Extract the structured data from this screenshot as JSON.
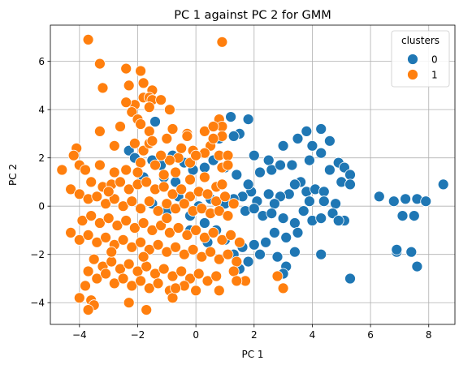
{
  "chart_data": {
    "type": "scatter",
    "title": "PC 1 against PC 2 for GMM",
    "xlabel": "PC 1",
    "ylabel": "PC 2",
    "xlim": [
      -5.0,
      8.9
    ],
    "ylim": [
      -4.9,
      7.5
    ],
    "xticks": [
      -4,
      -2,
      0,
      2,
      4,
      6,
      8
    ],
    "yticks": [
      -4,
      -2,
      0,
      2,
      4,
      6
    ],
    "grid": true,
    "legend": {
      "title": "clusters",
      "placement": "top-right"
    },
    "series": [
      {
        "name": "0",
        "color": "#1f77b4",
        "points": [
          [
            -1.4,
            3.5
          ],
          [
            0.8,
            3.5
          ],
          [
            1.2,
            3.7
          ],
          [
            1.8,
            3.6
          ],
          [
            1.5,
            3.0
          ],
          [
            1.3,
            2.9
          ],
          [
            0.8,
            2.8
          ],
          [
            3.0,
            2.5
          ],
          [
            3.5,
            2.8
          ],
          [
            3.8,
            3.1
          ],
          [
            4.3,
            3.2
          ],
          [
            4.0,
            2.5
          ],
          [
            4.6,
            2.7
          ],
          [
            2.0,
            2.1
          ],
          [
            2.5,
            1.9
          ],
          [
            2.2,
            1.4
          ],
          [
            2.6,
            1.5
          ],
          [
            2.9,
            1.7
          ],
          [
            3.3,
            1.7
          ],
          [
            3.9,
            1.9
          ],
          [
            4.3,
            2.2
          ],
          [
            4.6,
            1.5
          ],
          [
            4.9,
            1.8
          ],
          [
            5.1,
            1.6
          ],
          [
            5.3,
            1.3
          ],
          [
            5.0,
            1.0
          ],
          [
            5.3,
            0.9
          ],
          [
            3.6,
            1.0
          ],
          [
            3.8,
            0.6
          ],
          [
            4.1,
            0.7
          ],
          [
            4.4,
            0.6
          ],
          [
            3.9,
            0.2
          ],
          [
            4.4,
            0.2
          ],
          [
            4.8,
            0.1
          ],
          [
            3.2,
            0.5
          ],
          [
            3.4,
            0.9
          ],
          [
            2.9,
            0.4
          ],
          [
            2.7,
            0.1
          ],
          [
            2.5,
            0.5
          ],
          [
            2.1,
            0.2
          ],
          [
            1.9,
            0.6
          ],
          [
            1.6,
            0.4
          ],
          [
            1.3,
            0.3
          ],
          [
            1.0,
            0.1
          ],
          [
            1.7,
            -0.2
          ],
          [
            2.0,
            -0.1
          ],
          [
            2.3,
            -0.4
          ],
          [
            2.6,
            -0.3
          ],
          [
            3.0,
            -0.5
          ],
          [
            3.4,
            -0.7
          ],
          [
            3.7,
            -0.2
          ],
          [
            4.0,
            -0.6
          ],
          [
            4.3,
            -0.5
          ],
          [
            4.7,
            -0.3
          ],
          [
            5.1,
            -0.6
          ],
          [
            3.5,
            -1.1
          ],
          [
            3.1,
            -1.3
          ],
          [
            2.7,
            -1.1
          ],
          [
            2.4,
            -1.5
          ],
          [
            2.0,
            -1.6
          ],
          [
            1.6,
            -1.7
          ],
          [
            1.3,
            -2.0
          ],
          [
            1.8,
            -2.3
          ],
          [
            2.2,
            -2.0
          ],
          [
            2.8,
            -2.1
          ],
          [
            3.1,
            -2.5
          ],
          [
            3.4,
            -1.9
          ],
          [
            4.3,
            -2.0
          ],
          [
            3.0,
            -2.8
          ],
          [
            1.0,
            -1.4
          ],
          [
            0.7,
            -1.0
          ],
          [
            0.3,
            -0.7
          ],
          [
            -0.2,
            -0.4
          ],
          [
            0.1,
            0.0
          ],
          [
            0.5,
            0.3
          ],
          [
            -0.6,
            0.4
          ],
          [
            -1.0,
            -0.2
          ],
          [
            -1.5,
            0.1
          ],
          [
            -1.8,
            1.2
          ],
          [
            -2.3,
            2.3
          ],
          [
            -2.1,
            2.0
          ],
          [
            -1.5,
            1.9
          ],
          [
            -1.2,
            1.7
          ],
          [
            -0.8,
            2.1
          ],
          [
            -0.4,
            1.8
          ],
          [
            -0.1,
            1.5
          ],
          [
            0.3,
            1.6
          ],
          [
            0.6,
            1.9
          ],
          [
            1.0,
            1.6
          ],
          [
            1.4,
            1.3
          ],
          [
            1.8,
            0.9
          ],
          [
            -1.1,
            1.2
          ],
          [
            -0.7,
            1.0
          ],
          [
            1.5,
            -2.6
          ],
          [
            5.3,
            -3.0
          ],
          [
            6.3,
            0.4
          ],
          [
            6.8,
            0.2
          ],
          [
            7.2,
            0.3
          ],
          [
            7.6,
            0.3
          ],
          [
            7.9,
            0.2
          ],
          [
            8.5,
            0.9
          ],
          [
            7.1,
            -0.4
          ],
          [
            7.5,
            -0.4
          ],
          [
            6.9,
            -1.9
          ],
          [
            6.9,
            -1.8
          ],
          [
            7.4,
            -1.9
          ],
          [
            7.6,
            -2.5
          ],
          [
            4.9,
            -0.6
          ],
          [
            -0.2,
            -1.0
          ],
          [
            0.4,
            -1.5
          ]
        ]
      },
      {
        "name": "1",
        "color": "#ff7f0e",
        "points": [
          [
            -3.7,
            6.9
          ],
          [
            0.9,
            6.8
          ],
          [
            -3.3,
            5.9
          ],
          [
            -2.4,
            5.7
          ],
          [
            -1.9,
            5.6
          ],
          [
            -1.8,
            5.1
          ],
          [
            -2.3,
            5.0
          ],
          [
            -1.5,
            4.8
          ],
          [
            -3.2,
            4.9
          ],
          [
            -1.8,
            4.5
          ],
          [
            -1.6,
            4.5
          ],
          [
            -1.5,
            4.4
          ],
          [
            -1.2,
            4.4
          ],
          [
            -2.1,
            4.2
          ],
          [
            -2.4,
            4.3
          ],
          [
            -1.6,
            4.1
          ],
          [
            -0.9,
            4.0
          ],
          [
            -2.2,
            3.9
          ],
          [
            -2.0,
            3.6
          ],
          [
            -1.9,
            3.4
          ],
          [
            -2.6,
            3.3
          ],
          [
            -3.3,
            3.1
          ],
          [
            -1.6,
            3.1
          ],
          [
            -0.8,
            3.2
          ],
          [
            -0.3,
            3.0
          ],
          [
            0.3,
            3.1
          ],
          [
            0.8,
            3.6
          ],
          [
            0.9,
            3.3
          ],
          [
            0.6,
            3.3
          ],
          [
            0.9,
            2.9
          ],
          [
            0.5,
            2.5
          ],
          [
            0.3,
            2.2
          ],
          [
            0.8,
            2.1
          ],
          [
            1.1,
            2.1
          ],
          [
            0.9,
            1.6
          ],
          [
            1.1,
            1.7
          ],
          [
            -2.8,
            2.5
          ],
          [
            -2.1,
            2.6
          ],
          [
            -1.8,
            2.3
          ],
          [
            -1.6,
            2.6
          ],
          [
            -1.5,
            2.7
          ],
          [
            -1.0,
            2.8
          ],
          [
            -0.6,
            2.0
          ],
          [
            -0.1,
            2.3
          ],
          [
            -0.2,
            1.8
          ],
          [
            -4.1,
            2.4
          ],
          [
            -4.2,
            2.1
          ],
          [
            -4.0,
            1.7
          ],
          [
            -4.6,
            1.5
          ],
          [
            -3.8,
            1.5
          ],
          [
            -3.3,
            1.7
          ],
          [
            -2.8,
            1.4
          ],
          [
            -2.4,
            1.5
          ],
          [
            -1.9,
            1.8
          ],
          [
            -1.4,
            1.7
          ],
          [
            -1.1,
            1.3
          ],
          [
            -0.7,
            1.4
          ],
          [
            -0.2,
            1.1
          ],
          [
            0.3,
            1.2
          ],
          [
            0.7,
            0.8
          ],
          [
            -3.6,
            1.0
          ],
          [
            -3.2,
            0.8
          ],
          [
            -2.9,
            0.9
          ],
          [
            -2.6,
            1.0
          ],
          [
            -2.3,
            0.7
          ],
          [
            -2.0,
            0.9
          ],
          [
            -1.7,
            1.0
          ],
          [
            -1.4,
            0.7
          ],
          [
            -1.1,
            0.8
          ],
          [
            -0.8,
            0.5
          ],
          [
            -0.5,
            0.7
          ],
          [
            -0.2,
            0.4
          ],
          [
            0.1,
            0.6
          ],
          [
            0.4,
            0.5
          ],
          [
            0.7,
            0.2
          ],
          [
            1.0,
            0.4
          ],
          [
            1.3,
            0.1
          ],
          [
            -4.3,
            0.7
          ],
          [
            -4.0,
            0.5
          ],
          [
            -3.7,
            0.3
          ],
          [
            -3.4,
            0.4
          ],
          [
            -3.1,
            0.1
          ],
          [
            -2.8,
            0.3
          ],
          [
            -2.5,
            0.0
          ],
          [
            -2.2,
            0.2
          ],
          [
            -1.9,
            -0.1
          ],
          [
            -1.6,
            0.2
          ],
          [
            -1.3,
            -0.2
          ],
          [
            -1.0,
            0.1
          ],
          [
            -0.7,
            -0.1
          ],
          [
            -0.4,
            0.1
          ],
          [
            -0.1,
            -0.2
          ],
          [
            0.2,
            -0.1
          ],
          [
            0.5,
            -0.3
          ],
          [
            0.8,
            -0.2
          ],
          [
            1.1,
            -0.4
          ],
          [
            -3.9,
            -0.6
          ],
          [
            -3.6,
            -0.4
          ],
          [
            -3.3,
            -0.7
          ],
          [
            -3.0,
            -0.5
          ],
          [
            -2.7,
            -0.8
          ],
          [
            -2.4,
            -0.6
          ],
          [
            -2.1,
            -0.9
          ],
          [
            -1.8,
            -0.7
          ],
          [
            -1.5,
            -1.0
          ],
          [
            -1.2,
            -0.8
          ],
          [
            -0.9,
            -1.1
          ],
          [
            -0.6,
            -0.9
          ],
          [
            -0.3,
            -1.2
          ],
          [
            0.0,
            -1.0
          ],
          [
            0.3,
            -1.3
          ],
          [
            0.6,
            -1.1
          ],
          [
            0.9,
            -1.4
          ],
          [
            1.2,
            -1.2
          ],
          [
            1.5,
            -1.5
          ],
          [
            -4.3,
            -1.1
          ],
          [
            -4.0,
            -1.4
          ],
          [
            -3.7,
            -1.2
          ],
          [
            -3.4,
            -1.5
          ],
          [
            -3.1,
            -1.3
          ],
          [
            -2.8,
            -1.6
          ],
          [
            -2.5,
            -1.4
          ],
          [
            -2.2,
            -1.7
          ],
          [
            -1.9,
            -1.5
          ],
          [
            -1.6,
            -1.8
          ],
          [
            -1.3,
            -1.6
          ],
          [
            -1.0,
            -1.9
          ],
          [
            -0.7,
            -1.7
          ],
          [
            -0.4,
            -2.0
          ],
          [
            -0.1,
            -1.8
          ],
          [
            0.2,
            -2.1
          ],
          [
            0.5,
            -1.9
          ],
          [
            0.8,
            -2.2
          ],
          [
            1.1,
            -2.0
          ],
          [
            1.4,
            -2.3
          ],
          [
            -3.5,
            -2.2
          ],
          [
            -3.2,
            -2.5
          ],
          [
            -2.9,
            -2.3
          ],
          [
            -2.6,
            -2.6
          ],
          [
            -2.3,
            -2.4
          ],
          [
            -2.0,
            -2.7
          ],
          [
            -1.7,
            -2.5
          ],
          [
            -1.4,
            -2.8
          ],
          [
            -1.1,
            -2.6
          ],
          [
            -0.8,
            -2.9
          ],
          [
            -0.5,
            -2.7
          ],
          [
            -0.2,
            -3.0
          ],
          [
            0.1,
            -2.8
          ],
          [
            0.4,
            -3.1
          ],
          [
            0.7,
            -2.9
          ],
          [
            1.3,
            -2.7
          ],
          [
            1.7,
            -3.1
          ],
          [
            1.4,
            -3.1
          ],
          [
            2.8,
            -2.9
          ],
          [
            3.0,
            -3.4
          ],
          [
            -3.7,
            -2.7
          ],
          [
            -3.4,
            -3.0
          ],
          [
            -3.1,
            -2.8
          ],
          [
            -2.8,
            -3.2
          ],
          [
            -2.5,
            -3.0
          ],
          [
            -2.2,
            -3.3
          ],
          [
            -1.9,
            -3.1
          ],
          [
            -1.6,
            -3.4
          ],
          [
            -1.3,
            -3.2
          ],
          [
            -0.9,
            -3.5
          ],
          [
            -0.4,
            -3.3
          ],
          [
            -3.8,
            -3.3
          ],
          [
            -4.0,
            -3.8
          ],
          [
            -3.6,
            -3.9
          ],
          [
            -3.5,
            -4.1
          ],
          [
            -3.7,
            -4.3
          ],
          [
            -2.3,
            -4.0
          ],
          [
            -1.7,
            -4.3
          ],
          [
            -0.8,
            -3.8
          ],
          [
            0.0,
            -3.5
          ],
          [
            0.8,
            -3.5
          ],
          [
            -0.7,
            -3.4
          ],
          [
            -3.0,
            0.6
          ],
          [
            -2.0,
            1.4
          ],
          [
            -0.9,
            1.9
          ],
          [
            -1.2,
            2.1
          ],
          [
            -0.5,
            2.4
          ],
          [
            -2.9,
            -1.9
          ],
          [
            -1.8,
            -2.1
          ],
          [
            0.0,
            2.1
          ],
          [
            -0.3,
            2.9
          ],
          [
            0.6,
            2.8
          ],
          [
            -1.0,
            -0.5
          ],
          [
            0.9,
            0.9
          ]
        ]
      }
    ]
  }
}
